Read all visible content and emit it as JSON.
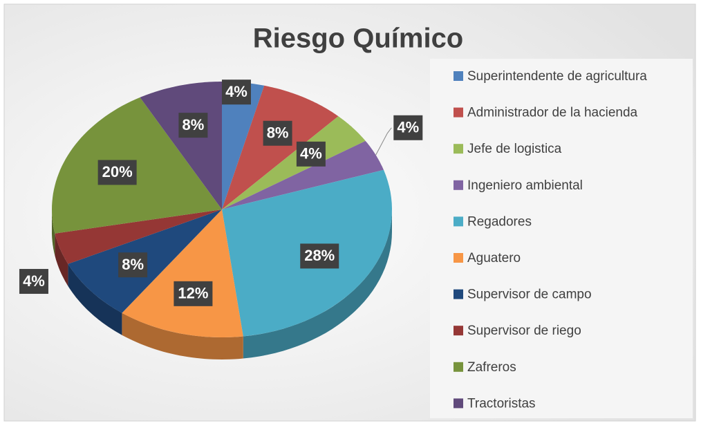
{
  "chart_data": {
    "type": "pie",
    "title": "Riesgo Químico",
    "categories": [
      "Superintendente de agricultura",
      "Administrador de la hacienda",
      "Jefe de logistica",
      "Ingeniero ambiental",
      "Regadores",
      "Aguatero",
      "Supervisor de campo",
      "Supervisor de riego",
      "Zafreros",
      "Tractoristas"
    ],
    "values": [
      4,
      8,
      4,
      4,
      28,
      12,
      8,
      4,
      20,
      8
    ],
    "value_labels": [
      "4%",
      "8%",
      "4%",
      "4%",
      "28%",
      "12%",
      "8%",
      "4%",
      "20%",
      "8%"
    ],
    "colors": [
      "#4f81bd",
      "#c0504d",
      "#9bbb59",
      "#8064a2",
      "#4bacc6",
      "#f79646",
      "#1f497d",
      "#953735",
      "#77933c",
      "#604a7b"
    ],
    "legend": "right"
  }
}
